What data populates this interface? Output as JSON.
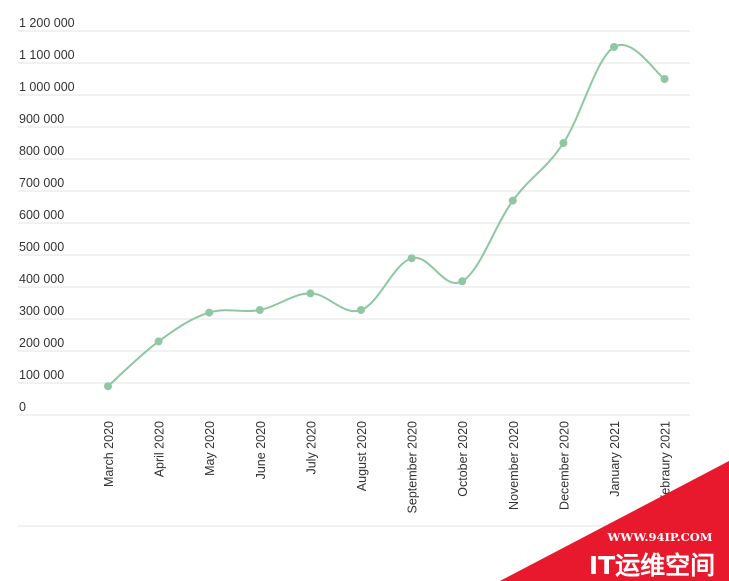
{
  "chart_data": {
    "type": "line",
    "title": "",
    "xlabel": "",
    "ylabel": "",
    "categories": [
      "March 2020",
      "April 2020",
      "May 2020",
      "June 2020",
      "July 2020",
      "August 2020",
      "September 2020",
      "October 2020",
      "November 2020",
      "December 2020",
      "January 2021",
      "Febraury 2021"
    ],
    "series": [
      {
        "values": [
          90000,
          230000,
          320000,
          328000,
          380000,
          328000,
          490000,
          418000,
          670000,
          850000,
          1150000,
          1050000
        ]
      }
    ],
    "ylim": [
      0,
      1200000
    ],
    "y_ticks": [
      0,
      100000,
      200000,
      300000,
      400000,
      500000,
      600000,
      700000,
      800000,
      900000,
      1000000,
      1100000,
      1200000
    ],
    "y_tick_labels": [
      "0",
      "100 000",
      "200 000",
      "300 000",
      "400 000",
      "500 000",
      "600 000",
      "700 000",
      "800 000",
      "900 000",
      "1 000 000",
      "1 100 000",
      "1 200 000"
    ],
    "grid": true,
    "legend": "none",
    "colors": {
      "line": "#8fc7a3",
      "grid": "#e3e3e3",
      "text": "#333333"
    }
  },
  "watermark": {
    "url": "WWW.94IP.COM",
    "brand": "IT运维空间",
    "color": "#e8192c"
  }
}
